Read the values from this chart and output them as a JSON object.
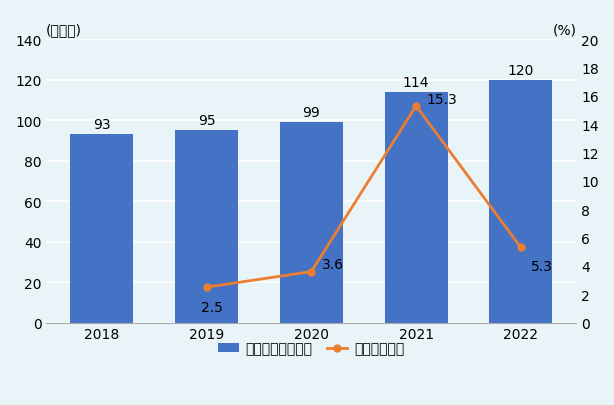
{
  "years": [
    2018,
    2019,
    2020,
    2021,
    2022
  ],
  "bar_values": [
    93,
    95,
    99,
    114,
    120
  ],
  "line_years": [
    2019,
    2020,
    2021,
    2022
  ],
  "line_values": [
    2.5,
    3.6,
    15.3,
    5.3
  ],
  "bar_color": "#4472C4",
  "line_color": "#ED7D31",
  "left_ylabel": "(億ドル)",
  "right_ylabel": "(%)",
  "left_ylim": [
    0,
    140
  ],
  "right_ylim": [
    0,
    20
  ],
  "left_yticks": [
    0,
    20,
    40,
    60,
    80,
    100,
    120,
    140
  ],
  "right_yticks": [
    0,
    2,
    4,
    6,
    8,
    10,
    12,
    14,
    16,
    18,
    20
  ],
  "background_color": "#e8f4f8",
  "legend_bar": "輸出額（億ドル）",
  "legend_line": "伸び率（％）",
  "tick_fontsize": 10,
  "bar_label_fontsize": 10,
  "line_label_fontsize": 10,
  "legend_fontsize": 10,
  "axis_label_fontsize": 10
}
